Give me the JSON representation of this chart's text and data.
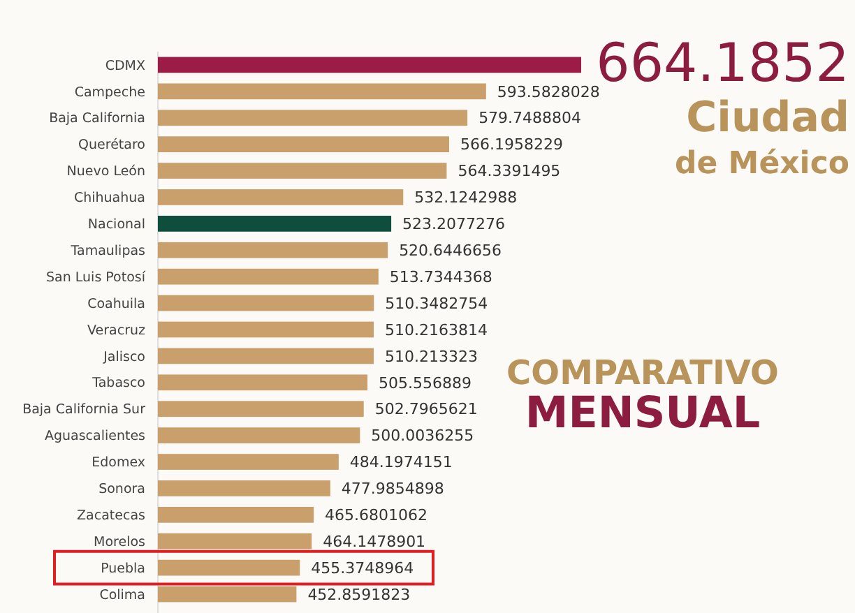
{
  "chart_data": {
    "type": "bar",
    "orientation": "horizontal",
    "categories": [
      "CDMX",
      "Campeche",
      "Baja California",
      "Querétaro",
      "Nuevo León",
      "Chihuahua",
      "Nacional",
      "Tamaulipas",
      "San Luis Potosí",
      "Coahuila",
      "Veracruz",
      "Jalisco",
      "Tabasco",
      "Baja California Sur",
      "Aguascalientes",
      "Edomex",
      "Sonora",
      "Zacatecas",
      "Morelos",
      "Puebla",
      "Colima"
    ],
    "values": [
      664.1852,
      593.5828028,
      579.7488804,
      566.1958229,
      564.3391495,
      532.1242988,
      523.2077276,
      520.6446656,
      513.7344368,
      510.3482754,
      510.2163814,
      510.213323,
      505.556889,
      502.7965621,
      500.0036255,
      484.1974151,
      477.9854898,
      465.6801062,
      464.1478901,
      455.3748964,
      452.8591823
    ],
    "value_labels": [
      null,
      "593.5828028",
      "579.7488804",
      "566.1958229",
      "564.3391495",
      "532.1242988",
      "523.2077276",
      "520.6446656",
      "513.7344368",
      "510.3482754",
      "510.2163814",
      "510.213323",
      "505.556889",
      "502.7965621",
      "500.0036255",
      "484.1974151",
      "477.9854898",
      "465.6801062",
      "464.1478901",
      "455.3748964",
      "452.8591823"
    ],
    "colors": [
      "#9b1c47",
      "#c9a06c",
      "#c9a06c",
      "#c9a06c",
      "#c9a06c",
      "#c9a06c",
      "#0f4d3d",
      "#c9a06c",
      "#c9a06c",
      "#c9a06c",
      "#c9a06c",
      "#c9a06c",
      "#c9a06c",
      "#c9a06c",
      "#c9a06c",
      "#c9a06c",
      "#c9a06c",
      "#c9a06c",
      "#c9a06c",
      "#c9a06c",
      "#c9a06c"
    ],
    "xlim": [
      350,
      664.1852
    ],
    "annotations": [
      "664.1852",
      "Ciudad",
      "de México",
      "COMPARATIVO",
      "MENSUAL"
    ]
  }
}
